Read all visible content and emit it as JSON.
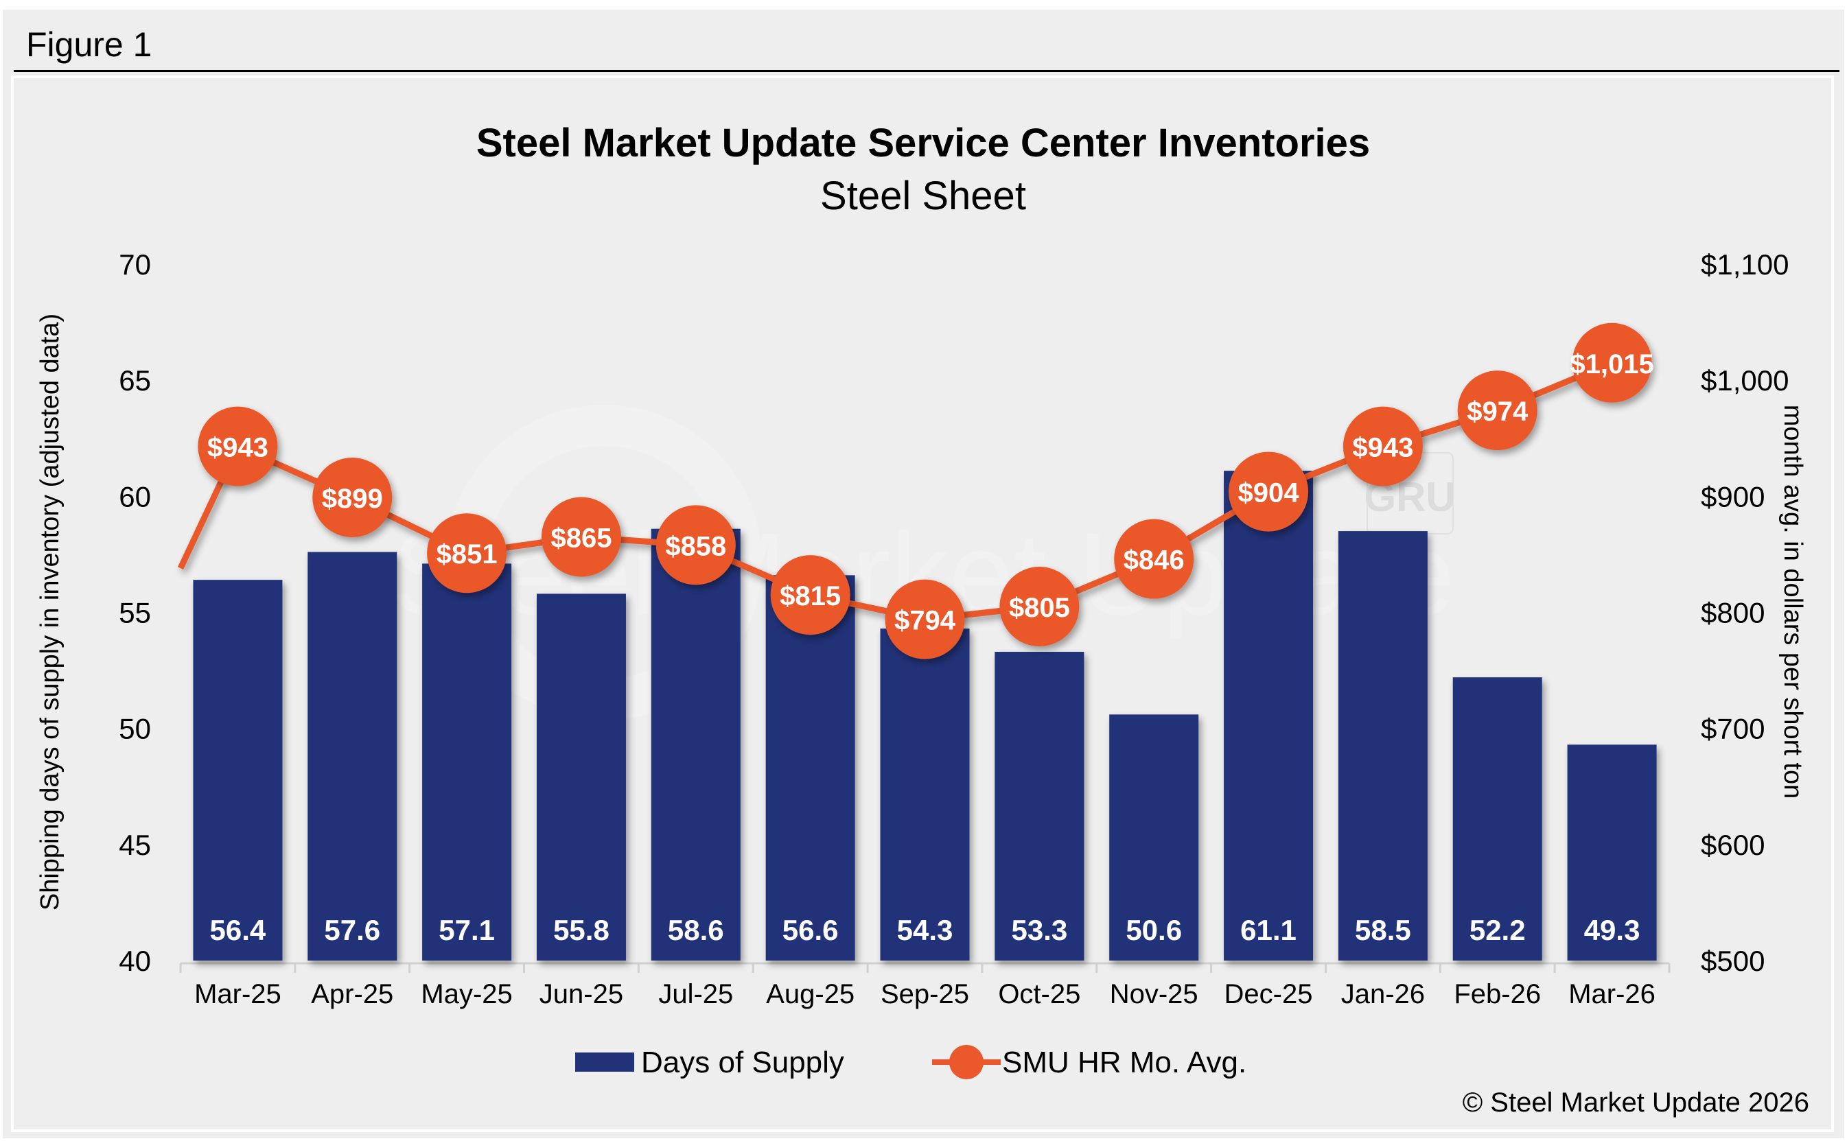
{
  "figure_label": "Figure 1",
  "colors": {
    "bar": "#213278",
    "line": "#ea582b",
    "background": "#eeeeee",
    "label_text": "#ffffff"
  },
  "chart_data": {
    "type": "bar",
    "title": "Steel Market Update Service Center Inventories",
    "subtitle": "Steel Sheet",
    "categories": [
      "Mar-25",
      "Apr-25",
      "May-25",
      "Jun-25",
      "Jul-25",
      "Aug-25",
      "Sep-25",
      "Oct-25",
      "Nov-25",
      "Dec-25",
      "Jan-26",
      "Feb-26",
      "Mar-26"
    ],
    "series": [
      {
        "name": "Days of Supply",
        "type": "bar",
        "axis": "left",
        "values": [
          56.4,
          57.6,
          57.1,
          55.8,
          58.6,
          56.6,
          54.3,
          53.3,
          50.6,
          61.1,
          58.5,
          52.2,
          49.3
        ],
        "labels": [
          "56.4",
          "57.6",
          "57.1",
          "55.8",
          "58.6",
          "56.6",
          "54.3",
          "53.3",
          "50.6",
          "61.1",
          "58.5",
          "52.2",
          "49.3"
        ]
      },
      {
        "name": "SMU HR Mo. Avg.",
        "type": "line",
        "axis": "right",
        "values": [
          943,
          899,
          851,
          865,
          858,
          815,
          794,
          805,
          846,
          904,
          943,
          974,
          1015
        ],
        "labels": [
          "$943",
          "$899",
          "$851",
          "$865",
          "$858",
          "$815",
          "$794",
          "$805",
          "$846",
          "$904",
          "$943",
          "$974",
          "$1,015"
        ]
      }
    ],
    "ylabel": "Shipping days of supply in inventory (adjusted data)",
    "y2label": "month avg. in dollars per short ton",
    "ylim": [
      40,
      70
    ],
    "yticks": [
      "40",
      "45",
      "50",
      "55",
      "60",
      "65",
      "70"
    ],
    "y2lim": [
      500,
      1100
    ],
    "y2ticks": [
      "$500",
      "$600",
      "$700",
      "$800",
      "$900",
      "$1,000",
      "$1,100"
    ],
    "grid": false,
    "legend_position": "bottom",
    "legend": [
      "Days of Supply",
      "SMU HR Mo. Avg."
    ],
    "watermark": "Steel Market Update",
    "watermark_logo": "GRU",
    "source": "© Steel Market Update 2026"
  }
}
